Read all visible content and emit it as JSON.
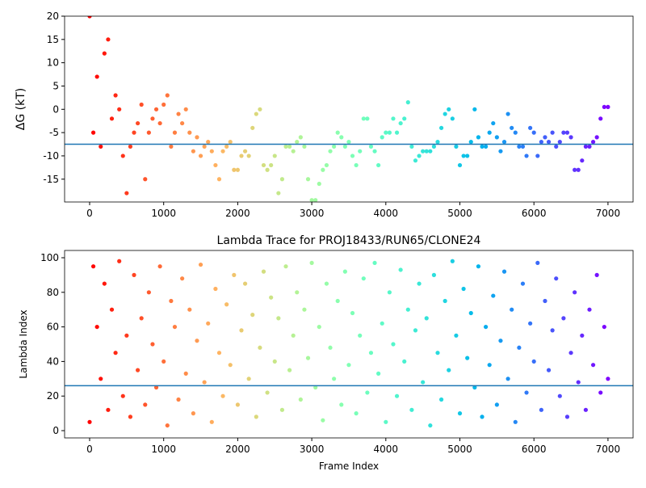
{
  "chart_data": [
    {
      "type": "scatter",
      "ylabel": "ΔG (kT)",
      "colormap": "rainbow_r",
      "x": [
        0,
        50,
        100,
        150,
        200,
        250,
        300,
        350,
        400,
        450,
        500,
        550,
        600,
        650,
        700,
        750,
        800,
        850,
        900,
        950,
        1000,
        1050,
        1100,
        1150,
        1200,
        1250,
        1300,
        1350,
        1400,
        1450,
        1500,
        1550,
        1600,
        1650,
        1700,
        1750,
        1800,
        1850,
        1900,
        1950,
        2000,
        2050,
        2100,
        2150,
        2200,
        2250,
        2300,
        2350,
        2400,
        2450,
        2500,
        2550,
        2600,
        2650,
        2700,
        2750,
        2800,
        2850,
        2900,
        2950,
        3000,
        3050,
        3100,
        3150,
        3200,
        3250,
        3300,
        3350,
        3400,
        3450,
        3500,
        3550,
        3600,
        3650,
        3700,
        3750,
        3800,
        3850,
        3900,
        3950,
        4000,
        4050,
        4100,
        4150,
        4200,
        4250,
        4300,
        4350,
        4400,
        4450,
        4500,
        4550,
        4600,
        4650,
        4700,
        4750,
        4800,
        4850,
        4900,
        4950,
        5000,
        5050,
        5100,
        5150,
        5200,
        5250,
        5300,
        5350,
        5400,
        5450,
        5500,
        5550,
        5600,
        5650,
        5700,
        5750,
        5800,
        5850,
        5900,
        5950,
        6000,
        6050,
        6100,
        6150,
        6200,
        6250,
        6300,
        6350,
        6400,
        6450,
        6500,
        6550,
        6600,
        6650,
        6700,
        6750,
        6800,
        6850,
        6900,
        6950,
        7000
      ],
      "values": [
        20,
        -5,
        7,
        -8,
        12,
        15,
        -2,
        3,
        0,
        -10,
        -18,
        -8,
        -5,
        -3,
        1,
        -15,
        -5,
        -2,
        0,
        -3,
        1,
        3,
        -8,
        -5,
        -1,
        -3,
        0,
        -5,
        -9,
        -6,
        -10,
        -8,
        -7,
        -9,
        -12,
        -15,
        -9,
        -8,
        -7,
        -13,
        -13,
        -10,
        -9,
        -10,
        -4,
        -1,
        0,
        -12,
        -13,
        -12,
        -10,
        -18,
        -15,
        -8,
        -8,
        -9,
        -7,
        -6,
        -8,
        -15,
        -19.5,
        -19.5,
        -16,
        -13,
        -12,
        -9,
        -8,
        -5,
        -6,
        -8,
        -7,
        -10,
        -12,
        -9,
        -2,
        -2,
        -8,
        -9,
        -12,
        -6,
        -5,
        -5,
        -2,
        -5,
        -3,
        -2,
        1.5,
        -8,
        -11,
        -10,
        -9,
        -9,
        -9,
        -8,
        -7,
        -4,
        -1,
        0,
        -2,
        -8,
        -12,
        -10,
        -10,
        -7,
        0,
        -6,
        -8,
        -8,
        -5,
        -3,
        -6,
        -9,
        -7,
        -1,
        -4,
        -5,
        -8,
        -8,
        -10,
        -4,
        -5,
        -10,
        -7,
        -6,
        -7,
        -5,
        -8,
        -7,
        -5,
        -5,
        -6,
        -13,
        -13,
        -11,
        -8,
        -8,
        -7,
        -6,
        -2,
        0.5,
        0.5
      ],
      "hline": -7.5,
      "hline_color": "#1f77b4",
      "xlim": [
        -338,
        7339
      ],
      "xticks": [
        0,
        1000,
        2000,
        3000,
        4000,
        5000,
        6000,
        7000
      ],
      "ylim": [
        -19.9,
        20
      ],
      "yticks": [
        20,
        15,
        10,
        5,
        0,
        -5,
        -10,
        -15
      ]
    },
    {
      "type": "scatter",
      "title": "Lambda Trace for PROJ18433/RUN65/CLONE24",
      "xlabel": "Frame Index",
      "ylabel": "Lambda Index",
      "colormap": "rainbow_r",
      "x": [
        0,
        50,
        100,
        150,
        200,
        250,
        300,
        350,
        400,
        450,
        500,
        550,
        600,
        650,
        700,
        750,
        800,
        850,
        900,
        950,
        1000,
        1050,
        1100,
        1150,
        1200,
        1250,
        1300,
        1350,
        1400,
        1450,
        1500,
        1550,
        1600,
        1650,
        1700,
        1750,
        1800,
        1850,
        1900,
        1950,
        2000,
        2050,
        2100,
        2150,
        2200,
        2250,
        2300,
        2350,
        2400,
        2450,
        2500,
        2550,
        2600,
        2650,
        2700,
        2750,
        2800,
        2850,
        2900,
        2950,
        3000,
        3050,
        3100,
        3150,
        3200,
        3250,
        3300,
        3350,
        3400,
        3450,
        3500,
        3550,
        3600,
        3650,
        3700,
        3750,
        3800,
        3850,
        3900,
        3950,
        4000,
        4050,
        4100,
        4150,
        4200,
        4250,
        4300,
        4350,
        4400,
        4450,
        4500,
        4550,
        4600,
        4650,
        4700,
        4750,
        4800,
        4850,
        4900,
        4950,
        5000,
        5050,
        5100,
        5150,
        5200,
        5250,
        5300,
        5350,
        5400,
        5450,
        5500,
        5550,
        5600,
        5650,
        5700,
        5750,
        5800,
        5850,
        5900,
        5950,
        6000,
        6050,
        6100,
        6150,
        6200,
        6250,
        6300,
        6350,
        6400,
        6450,
        6500,
        6550,
        6600,
        6650,
        6700,
        6750,
        6800,
        6850,
        6900,
        6950,
        7000
      ],
      "values": [
        5,
        95,
        60,
        30,
        85,
        12,
        70,
        45,
        98,
        20,
        55,
        8,
        90,
        35,
        65,
        15,
        80,
        50,
        25,
        95,
        40,
        3,
        75,
        60,
        18,
        88,
        33,
        70,
        10,
        52,
        96,
        28,
        62,
        5,
        82,
        45,
        20,
        73,
        38,
        90,
        15,
        58,
        85,
        30,
        67,
        8,
        48,
        92,
        22,
        77,
        40,
        65,
        12,
        95,
        35,
        55,
        80,
        18,
        70,
        42,
        97,
        25,
        60,
        6,
        85,
        48,
        30,
        75,
        15,
        92,
        38,
        68,
        10,
        55,
        88,
        22,
        45,
        97,
        33,
        62,
        5,
        80,
        50,
        20,
        93,
        40,
        70,
        12,
        58,
        85,
        28,
        65,
        3,
        90,
        45,
        18,
        75,
        35,
        98,
        55,
        10,
        82,
        42,
        68,
        25,
        95,
        8,
        60,
        38,
        78,
        15,
        52,
        92,
        30,
        70,
        5,
        48,
        85,
        22,
        62,
        40,
        97,
        12,
        75,
        35,
        58,
        88,
        20,
        65,
        8,
        45,
        80,
        28,
        55,
        12,
        70,
        38,
        90,
        22,
        60,
        30
      ],
      "hline": 26,
      "hline_color": "#1f77b4",
      "xlim": [
        -338,
        7339
      ],
      "xticks": [
        0,
        1000,
        2000,
        3000,
        4000,
        5000,
        6000,
        7000
      ],
      "ylim": [
        -4.2,
        104.2
      ],
      "yticks": [
        0,
        20,
        40,
        60,
        80,
        100
      ]
    }
  ]
}
